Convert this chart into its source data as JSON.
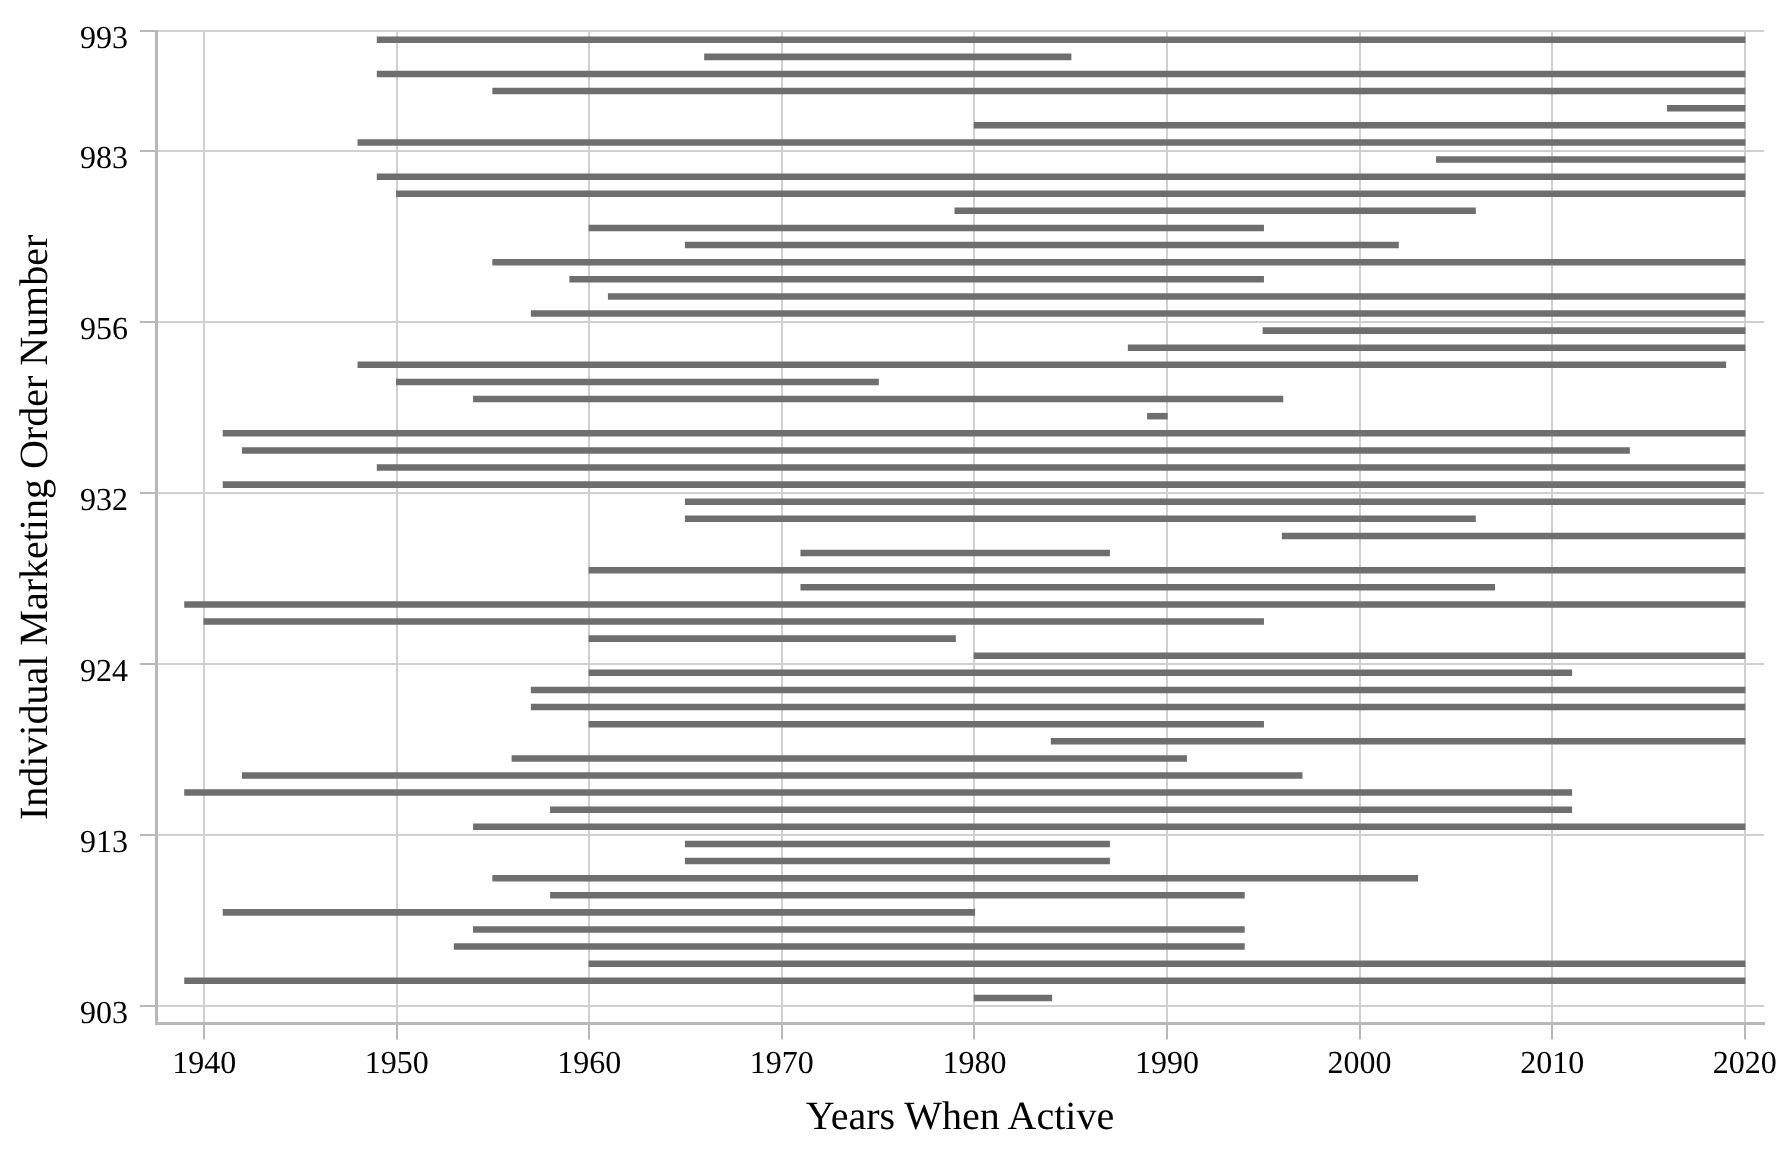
{
  "chart_data": {
    "type": "bar",
    "orientation": "horizontal",
    "xlabel": "Years When Active",
    "ylabel": "Individual Marketing Order Number",
    "categories": [
      "993",
      null,
      null,
      null,
      null,
      null,
      null,
      "983",
      null,
      null,
      null,
      null,
      null,
      null,
      null,
      null,
      null,
      "956",
      null,
      null,
      null,
      null,
      null,
      null,
      null,
      null,
      null,
      "932",
      null,
      null,
      null,
      null,
      null,
      null,
      null,
      null,
      null,
      "924",
      null,
      null,
      null,
      null,
      null,
      null,
      null,
      null,
      null,
      "913",
      null,
      null,
      null,
      null,
      null,
      null,
      null,
      null,
      null,
      "903"
    ],
    "base": [
      1949,
      1966,
      1949,
      1955,
      2016,
      1980,
      1948,
      2004,
      1949,
      1950,
      1979,
      1960,
      1965,
      1955,
      1959,
      1961,
      1957,
      1995,
      1988,
      1948,
      1950,
      1954,
      1989,
      1941,
      1942,
      1949,
      1941,
      1965,
      1965,
      1996,
      1971,
      1960,
      1971,
      1939,
      1940,
      1960,
      1980,
      1960,
      1957,
      1957,
      1960,
      1984,
      1956,
      1942,
      1939,
      1958,
      1954,
      1965,
      1965,
      1955,
      1958,
      1941,
      1954,
      1953,
      1960,
      1939,
      1980,
      null
    ],
    "values": [
      71,
      19,
      71,
      65,
      4,
      40,
      72,
      16,
      71,
      70,
      27,
      35,
      37,
      65,
      36,
      59,
      63,
      25,
      32,
      71,
      25,
      42,
      1,
      79,
      72,
      71,
      79,
      55,
      41,
      24,
      16,
      60,
      36,
      81,
      55,
      19,
      40,
      51,
      63,
      63,
      35,
      36,
      35,
      55,
      72,
      53,
      66,
      22,
      22,
      48,
      36,
      39,
      40,
      41,
      60,
      81,
      4,
      null
    ],
    "color": "#6e6e6e",
    "xlim": [
      1937.5,
      2021
    ],
    "xticks": [
      1940,
      1950,
      1960,
      1970,
      1980,
      1990,
      2000,
      2010,
      2020
    ],
    "grid": true
  }
}
